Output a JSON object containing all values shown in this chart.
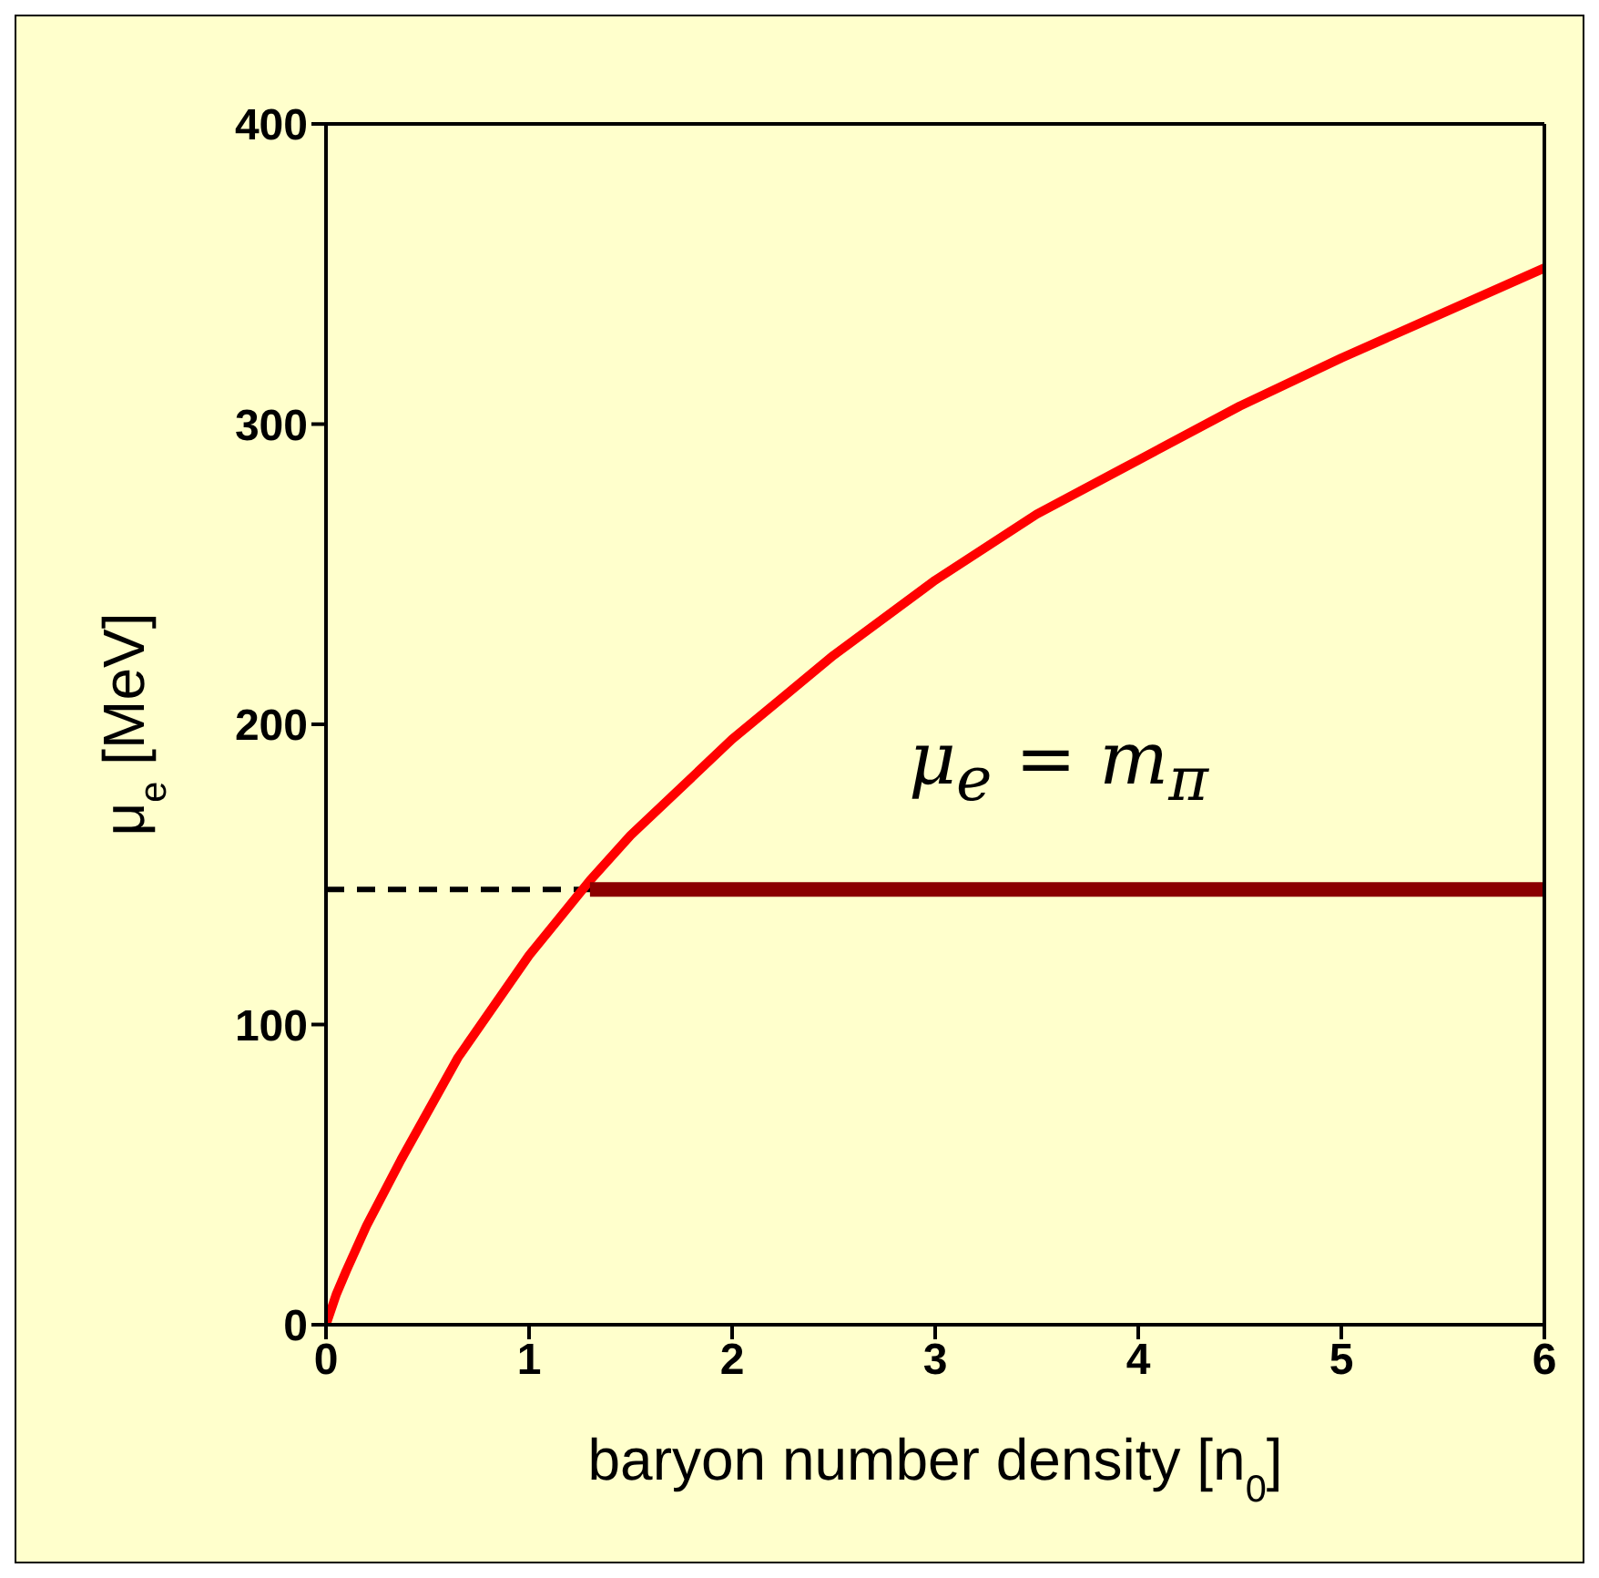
{
  "chart_data": {
    "type": "line",
    "xlabel": "baryon number density [n$_{0}$]",
    "ylabel": "μ$_{e}$ [MeV]",
    "xlim": [
      0,
      6
    ],
    "ylim": [
      0,
      400
    ],
    "xticks": [
      0,
      1,
      2,
      3,
      4,
      5,
      6
    ],
    "yticks": [
      0,
      100,
      200,
      300,
      400
    ],
    "marker": "none",
    "series": [
      {
        "color": "#ff0000",
        "x": [
          0,
          0.05,
          0.1,
          0.2,
          0.37,
          0.65,
          1,
          1.3,
          1.5,
          2,
          2.5,
          3,
          3.5,
          4,
          4.5,
          5,
          5.5,
          6
        ],
        "values": [
          0,
          10,
          18,
          33,
          55,
          89,
          123,
          148,
          163,
          195,
          223,
          248,
          270,
          288,
          306,
          322,
          337,
          352
        ]
      },
      {
        "color": "#8b0000",
        "x": [
          1.3,
          6
        ],
        "values": [
          145,
          145
        ]
      }
    ],
    "ref_lines": [
      {
        "axis": "y",
        "value": 145,
        "color": "#000000",
        "line_style": "dashed"
      }
    ],
    "annotations": [
      "μ$_{e}$ = m$_{π}$"
    ]
  }
}
